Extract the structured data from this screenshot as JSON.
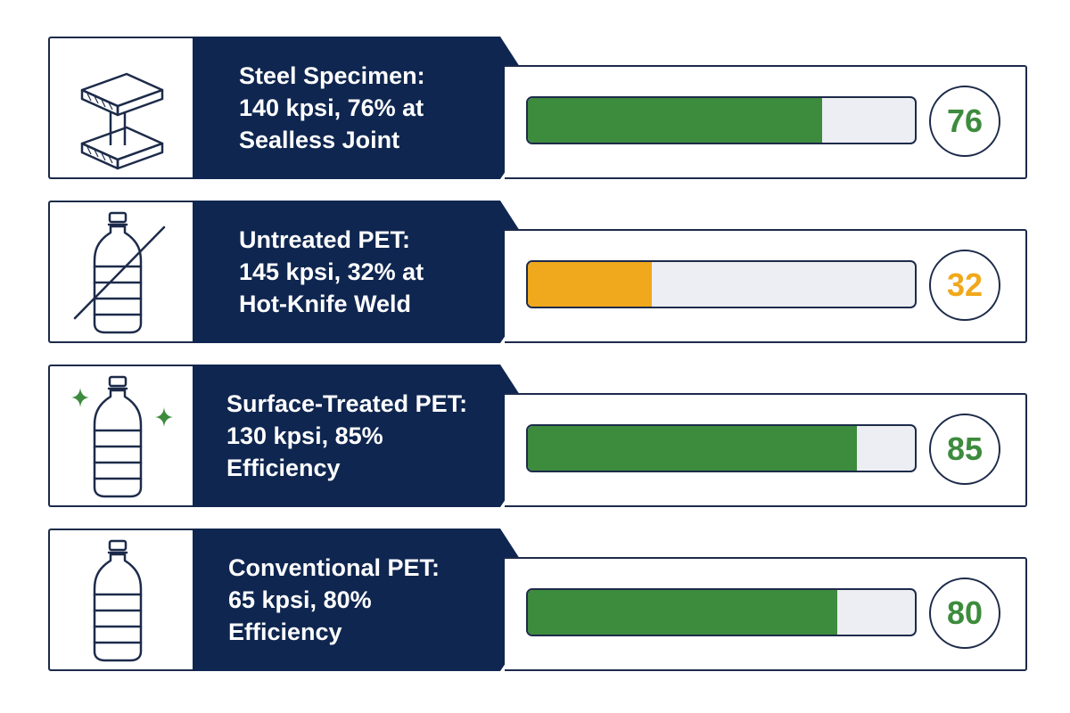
{
  "colors": {
    "navy": "#0f2650",
    "outline": "#1d2b4a",
    "green": "#3d8b3d",
    "amber": "#f0a81c",
    "track": "#eceef3"
  },
  "chart_data": {
    "type": "bar",
    "orientation": "horizontal",
    "title": "",
    "xlabel": "",
    "ylabel": "",
    "xlim": [
      0,
      100
    ],
    "grid": false,
    "categories": [
      "Steel Specimen: 140 kpsi, 76% at Sealless Joint",
      "Untreated PET: 145 kpsi, 32% at Hot-Knife Weld",
      "Surface-Treated PET: 130 kpsi, 85% Efficiency",
      "Conventional PET: 65 kpsi, 80% Efficiency"
    ],
    "values": [
      76,
      32,
      85,
      80
    ],
    "items": [
      {
        "icon": "steel-i-beam-icon",
        "lines": [
          "Steel Specimen:",
          "140 kpsi, 76% at",
          "Sealless Joint"
        ],
        "value": 76,
        "score_label": "76",
        "color": "#3d8b3d"
      },
      {
        "icon": "crossed-out-bottle-icon",
        "lines": [
          "Untreated PET:",
          "145 kpsi, 32% at",
          "Hot-Knife Weld"
        ],
        "value": 32,
        "score_label": "32",
        "color": "#f0a81c"
      },
      {
        "icon": "sparkle-bottle-icon",
        "lines": [
          "Surface-Treated PET:",
          "130 kpsi, 85%",
          "Efficiency"
        ],
        "value": 85,
        "score_label": "85",
        "color": "#3d8b3d"
      },
      {
        "icon": "bottle-icon",
        "lines": [
          "Conventional PET:",
          "65 kpsi, 80%",
          "Efficiency"
        ],
        "value": 80,
        "score_label": "80",
        "color": "#3d8b3d"
      }
    ]
  }
}
